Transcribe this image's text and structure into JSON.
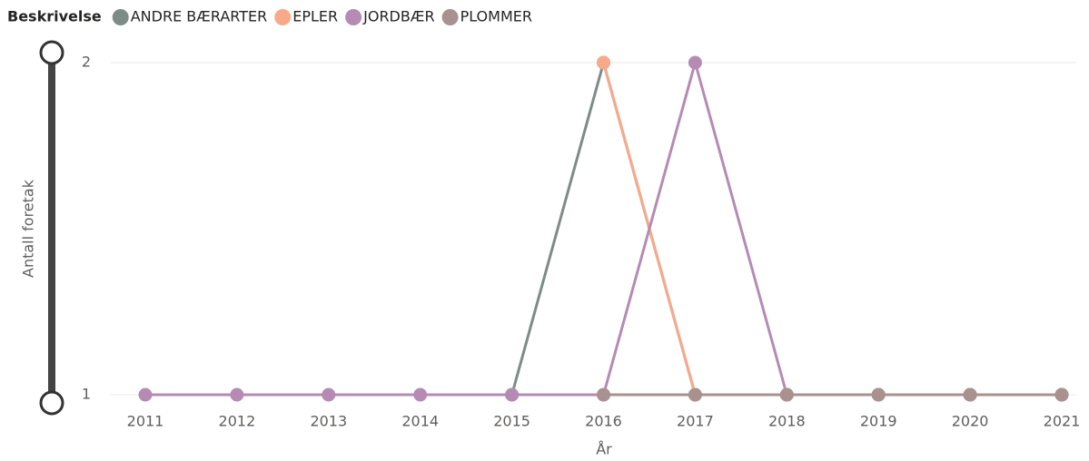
{
  "chart_data": {
    "type": "line",
    "legend_title": "Beskrivelse",
    "x": [
      2011,
      2012,
      2013,
      2014,
      2015,
      2016,
      2017,
      2018,
      2019,
      2020,
      2021
    ],
    "series": [
      {
        "name": "ANDRE BÆRARTER",
        "color": "#7f8b87",
        "values": [
          null,
          null,
          null,
          null,
          1,
          2,
          1,
          1,
          1,
          1,
          1
        ]
      },
      {
        "name": "EPLER",
        "color": "#f8a98a",
        "values": [
          null,
          null,
          null,
          null,
          null,
          2,
          1,
          1,
          1,
          1,
          1
        ]
      },
      {
        "name": "JORDBÆR",
        "color": "#b58bb4",
        "values": [
          1,
          1,
          1,
          1,
          1,
          1,
          2,
          1,
          1,
          1,
          1
        ]
      },
      {
        "name": "PLOMMER",
        "color": "#a8918f",
        "values": [
          null,
          null,
          null,
          null,
          null,
          1,
          1,
          1,
          1,
          1,
          1
        ]
      }
    ],
    "ylim": [
      1,
      2
    ],
    "yticks": [
      1,
      2
    ],
    "grid": true,
    "xlabel": "År",
    "ylabel": "Antall foretak"
  }
}
